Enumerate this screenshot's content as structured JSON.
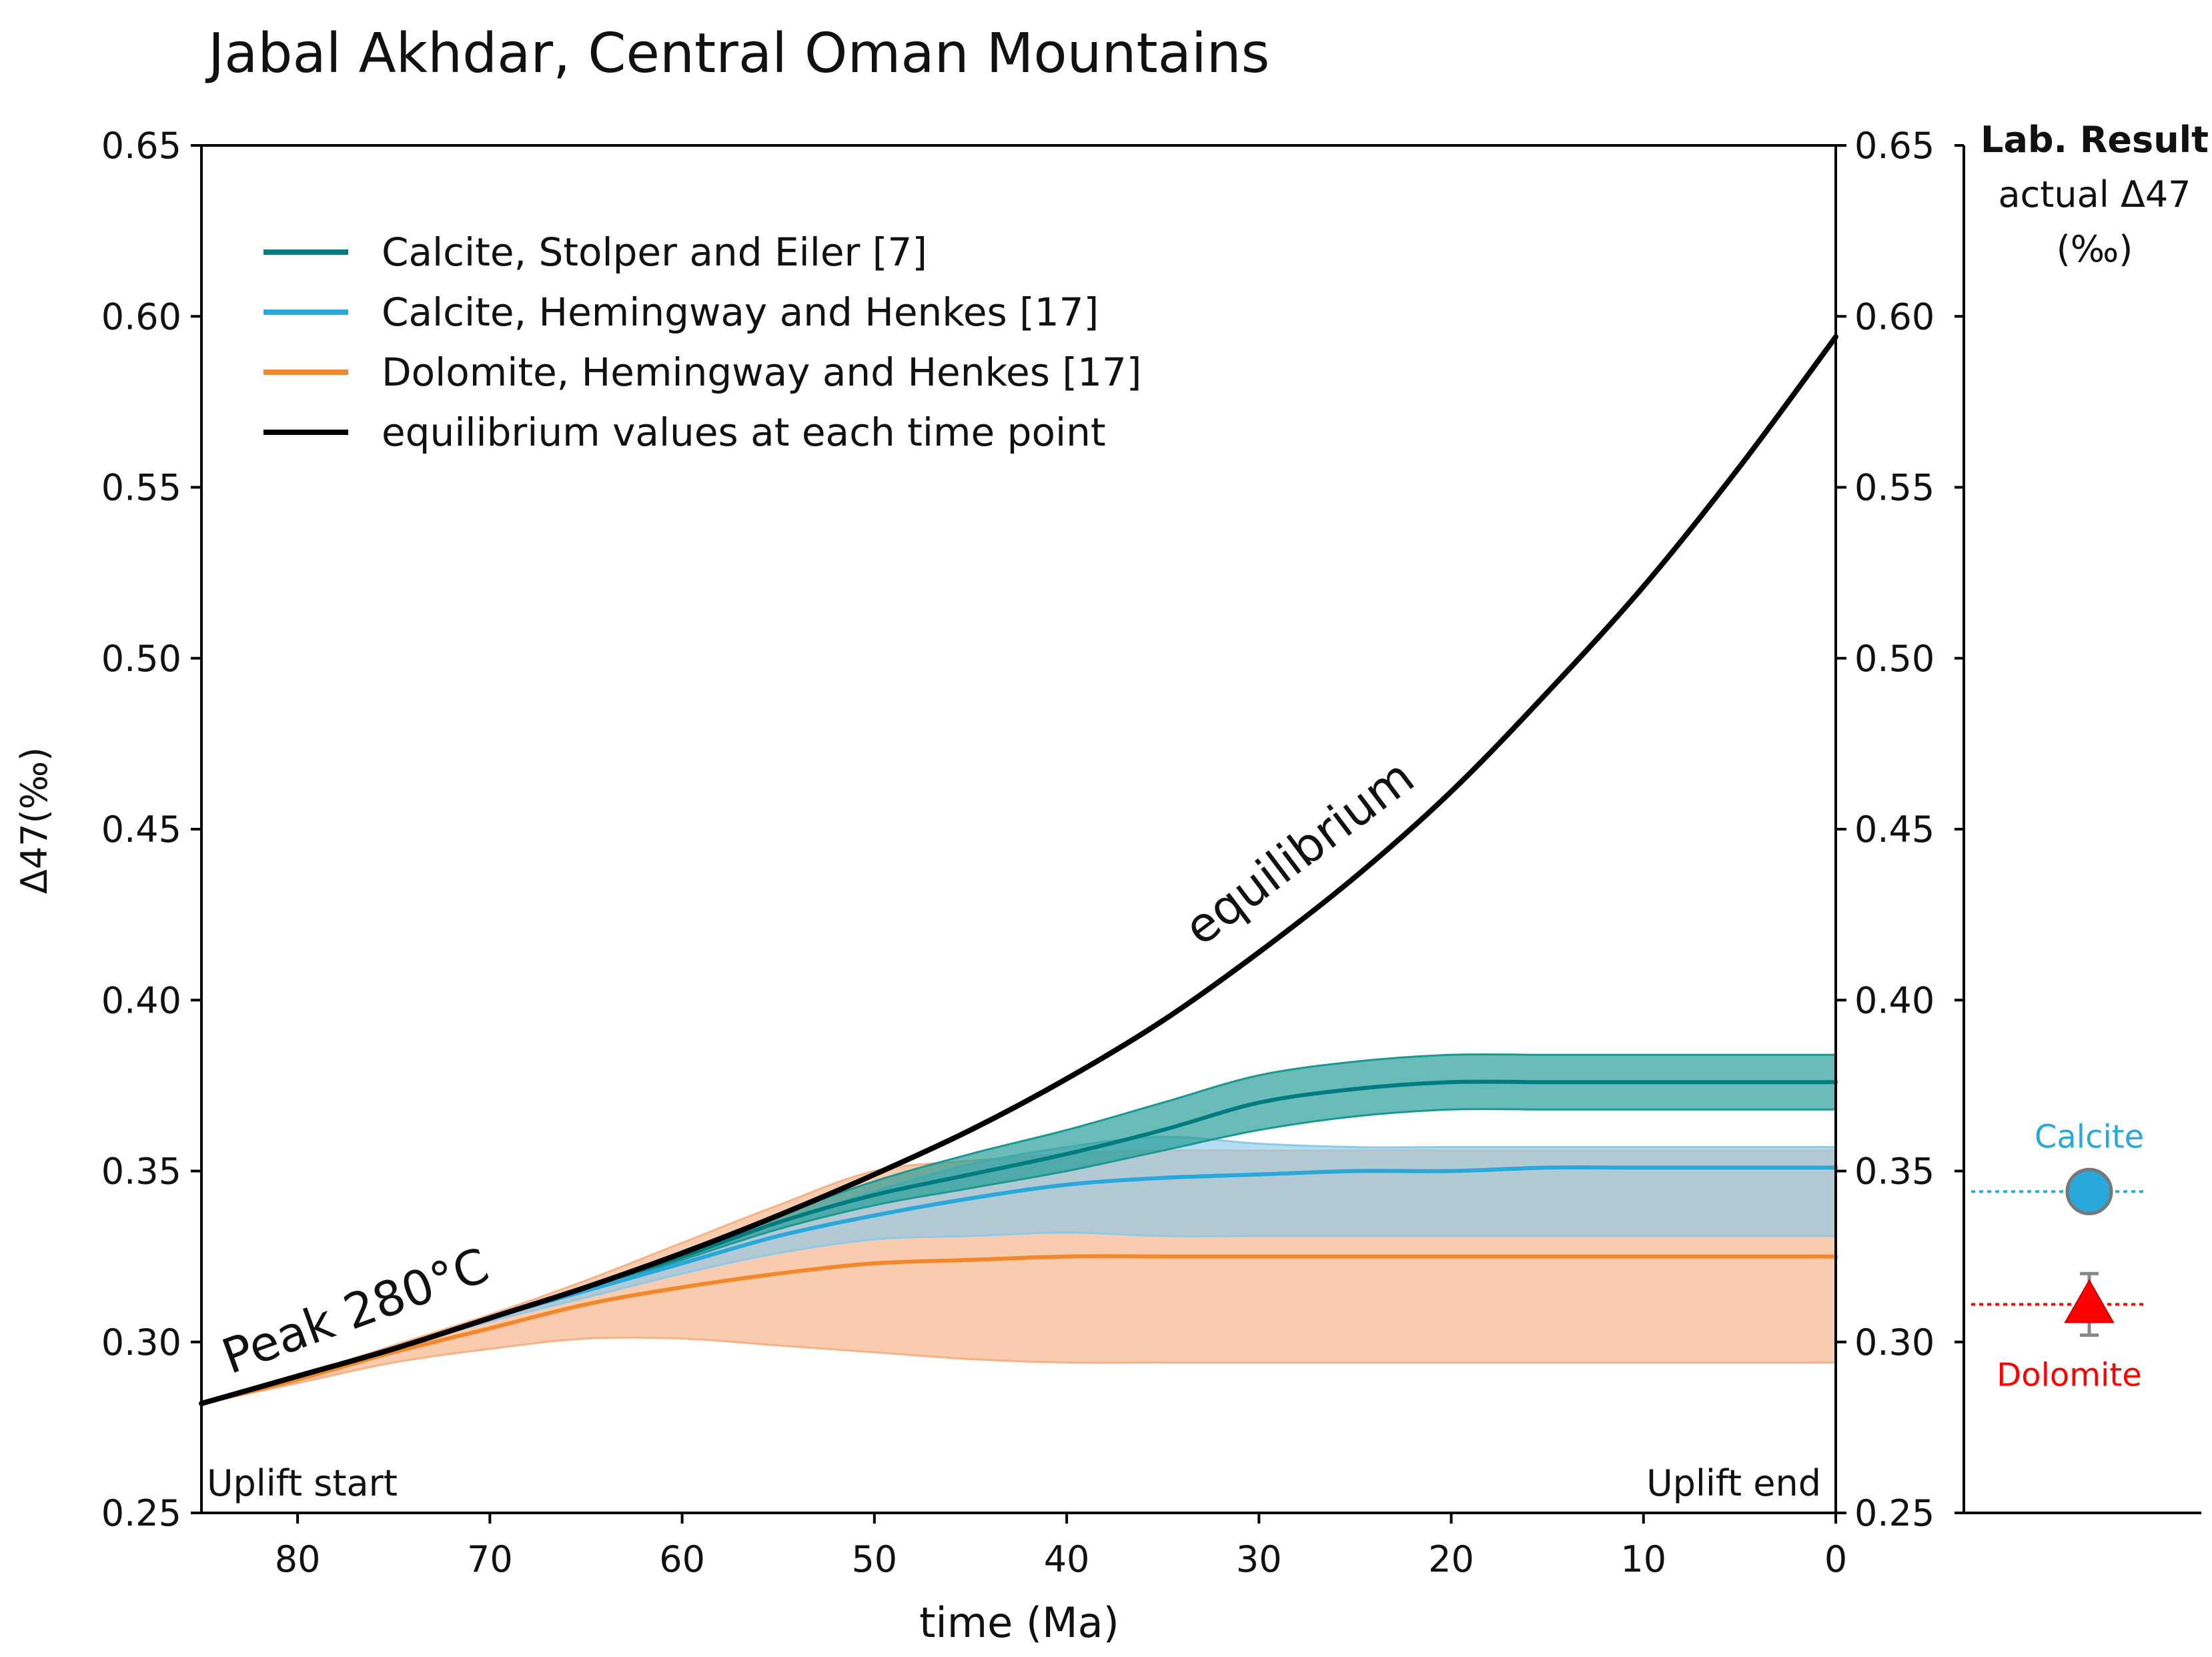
{
  "chart_data": {
    "type": "line",
    "title": "Jabal Akhdar, Central Oman Mountains",
    "xlabel": "time (Ma)",
    "ylabel": "Δ47(‰)",
    "xlim": [
      85,
      0
    ],
    "ylim": [
      0.25,
      0.65
    ],
    "x_ticks": [
      "80",
      "70",
      "60",
      "50",
      "40",
      "30",
      "20",
      "10",
      "0"
    ],
    "y_ticks": [
      "0.25",
      "0.30",
      "0.35",
      "0.40",
      "0.45",
      "0.50",
      "0.55",
      "0.60",
      "0.65"
    ],
    "legend": {
      "position": "top-left",
      "items": [
        {
          "label": "Calcite, Stolper and Eiler [7]",
          "color": "#007B7F"
        },
        {
          "label": "Calcite, Hemingway and Henkes [17]",
          "color": "#29A8DC"
        },
        {
          "label": "Dolomite, Hemingway and Henkes [17]",
          "color": "#F5872B"
        },
        {
          "label": "equilibrium values at each time point",
          "color": "#000000"
        }
      ]
    },
    "annotations": {
      "equilibrium": "equilibrium",
      "peak": "Peak 280°C",
      "uplift_start": "Uplift start",
      "uplift_end": "Uplift end"
    },
    "x": [
      85,
      80,
      75,
      70,
      65,
      60,
      55,
      50,
      45,
      40,
      35,
      30,
      25,
      20,
      15,
      10,
      5,
      0
    ],
    "series": [
      {
        "name": "equilibrium values at each time point",
        "color": "#000000",
        "values": [
          0.282,
          0.29,
          0.298,
          0.307,
          0.316,
          0.326,
          0.337,
          0.349,
          0.362,
          0.377,
          0.394,
          0.414,
          0.436,
          0.461,
          0.49,
          0.521,
          0.556,
          0.594
        ]
      },
      {
        "name": "Calcite, Stolper and Eiler [7]",
        "color": "#007B7F",
        "band_color": "#1A9893",
        "values": [
          0.282,
          0.29,
          0.298,
          0.307,
          0.316,
          0.325,
          0.335,
          0.343,
          0.349,
          0.355,
          0.362,
          0.37,
          0.374,
          0.376,
          0.376,
          0.376,
          0.376,
          0.376
        ],
        "upper": [
          0.282,
          0.29,
          0.298,
          0.307,
          0.316,
          0.326,
          0.337,
          0.347,
          0.355,
          0.362,
          0.37,
          0.378,
          0.382,
          0.384,
          0.384,
          0.384,
          0.384,
          0.384
        ],
        "lower": [
          0.282,
          0.29,
          0.298,
          0.307,
          0.315,
          0.324,
          0.333,
          0.34,
          0.345,
          0.35,
          0.356,
          0.362,
          0.366,
          0.368,
          0.368,
          0.368,
          0.368,
          0.368
        ]
      },
      {
        "name": "Calcite, Hemingway and Henkes [17]",
        "color": "#29A8DC",
        "band_color": "#8EC9E8",
        "values": [
          0.282,
          0.29,
          0.298,
          0.307,
          0.315,
          0.323,
          0.331,
          0.337,
          0.342,
          0.346,
          0.348,
          0.349,
          0.35,
          0.35,
          0.351,
          0.351,
          0.351,
          0.351
        ],
        "upper": [
          0.282,
          0.29,
          0.298,
          0.307,
          0.316,
          0.325,
          0.335,
          0.344,
          0.352,
          0.357,
          0.36,
          0.358,
          0.357,
          0.357,
          0.357,
          0.357,
          0.357,
          0.357
        ],
        "lower": [
          0.282,
          0.29,
          0.298,
          0.306,
          0.313,
          0.32,
          0.326,
          0.33,
          0.331,
          0.332,
          0.331,
          0.331,
          0.331,
          0.331,
          0.331,
          0.331,
          0.331,
          0.331
        ]
      },
      {
        "name": "Dolomite, Hemingway and Henkes [17]",
        "color": "#F5872B",
        "band_color": "#F8B184",
        "values": [
          0.282,
          0.289,
          0.297,
          0.304,
          0.311,
          0.316,
          0.32,
          0.323,
          0.324,
          0.325,
          0.325,
          0.325,
          0.325,
          0.325,
          0.325,
          0.325,
          0.325,
          0.325
        ],
        "upper": [
          0.282,
          0.29,
          0.299,
          0.308,
          0.318,
          0.329,
          0.34,
          0.35,
          0.353,
          0.355,
          0.356,
          0.356,
          0.356,
          0.356,
          0.356,
          0.356,
          0.356,
          0.356
        ],
        "lower": [
          0.282,
          0.288,
          0.294,
          0.298,
          0.301,
          0.301,
          0.299,
          0.297,
          0.295,
          0.294,
          0.294,
          0.294,
          0.294,
          0.294,
          0.294,
          0.294,
          0.294,
          0.294
        ]
      }
    ],
    "lab_result": {
      "header": "Lab. Result",
      "subheader": "actual Δ47",
      "unit": "(‰)",
      "points": [
        {
          "label": "Calcite",
          "value": 0.344,
          "error": 0.0,
          "marker": "circle",
          "color": "#29A8DC"
        },
        {
          "label": "Dolomite",
          "value": 0.311,
          "error": 0.009,
          "marker": "triangle",
          "color": "#FF0000"
        }
      ]
    }
  }
}
